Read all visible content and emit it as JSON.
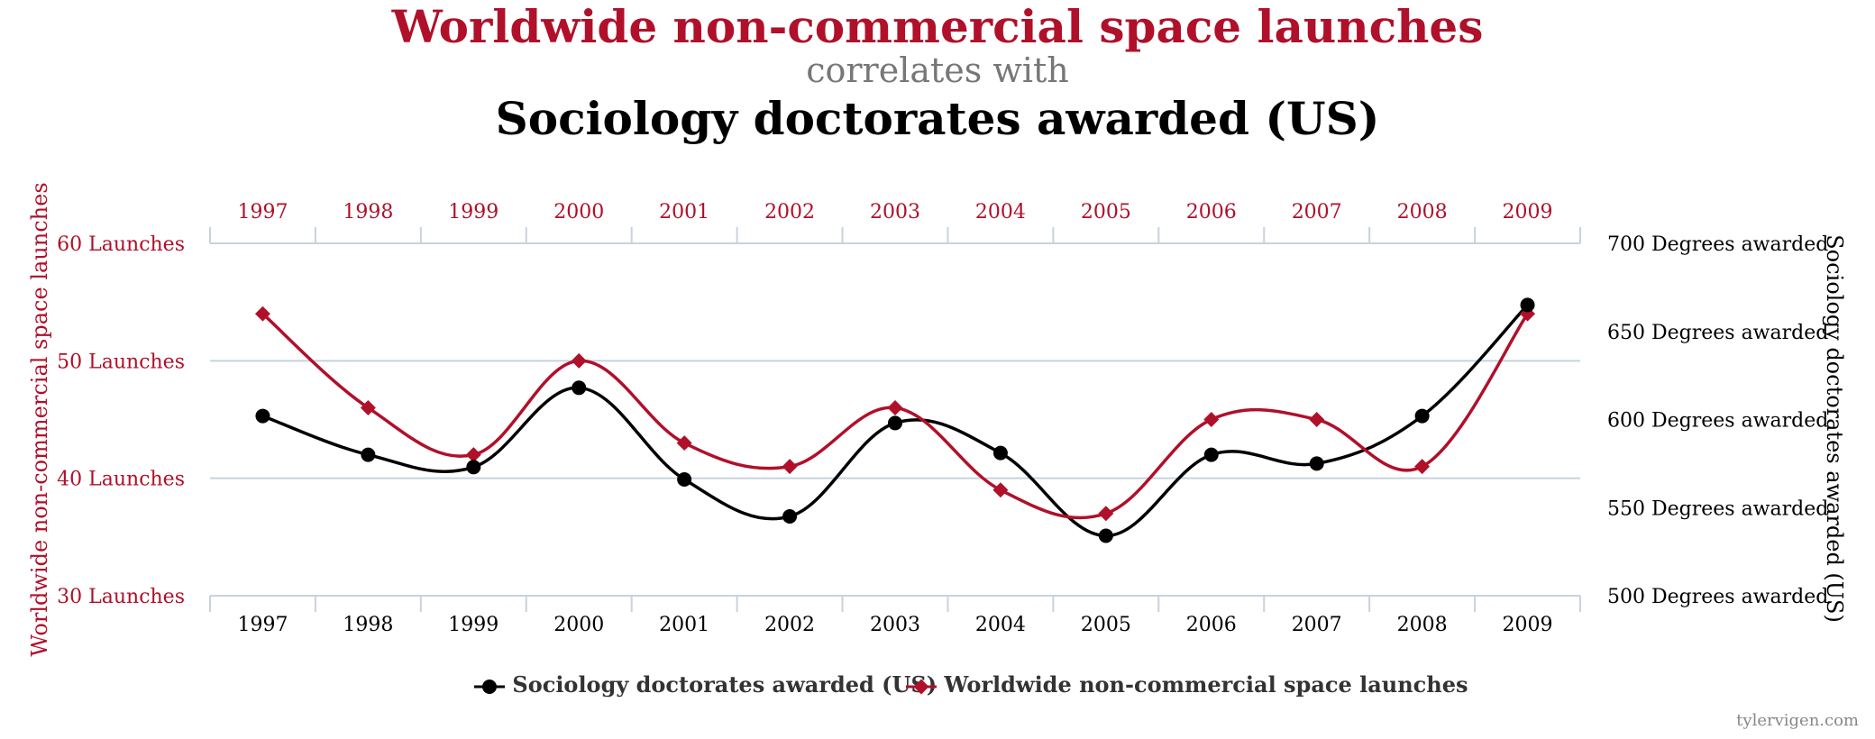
{
  "title": "Worldwide non-commercial space launches",
  "connector": "correlates with",
  "subtitle": "Sociology doctorates awarded (US)",
  "watermark": "tylervigen.com",
  "colors": {
    "series_red": "#b0102a",
    "series_black": "#000000",
    "grid": "#c8d2de",
    "subtitle_gray": "#777777"
  },
  "chart_data": {
    "type": "line",
    "categories": [
      "1997",
      "1998",
      "1999",
      "2000",
      "2001",
      "2002",
      "2003",
      "2004",
      "2005",
      "2006",
      "2007",
      "2008",
      "2009"
    ],
    "series": [
      {
        "name": "Sociology doctorates awarded (US)",
        "axis": "right",
        "color": "#000000",
        "marker": "circle",
        "values": [
          602,
          580,
          573,
          618,
          566,
          545,
          598,
          581,
          534,
          580,
          575,
          602,
          665
        ]
      },
      {
        "name": "Worldwide non-commercial space launches",
        "axis": "left",
        "color": "#b0102a",
        "marker": "diamond",
        "values": [
          54,
          46,
          42,
          50,
          43,
          41,
          46,
          39,
          37,
          45,
          45,
          41,
          54
        ]
      }
    ],
    "left_axis": {
      "label": "Worldwide non-commercial space launches",
      "range": [
        30,
        60
      ],
      "ticks": [
        {
          "value": 60,
          "label": "60 Launches"
        },
        {
          "value": 50,
          "label": "50 Launches"
        },
        {
          "value": 40,
          "label": "40 Launches"
        },
        {
          "value": 30,
          "label": "30 Launches"
        }
      ]
    },
    "right_axis": {
      "label": "Sociology doctorates awarded (US)",
      "range": [
        500,
        700
      ],
      "ticks": [
        {
          "value": 700,
          "label": "700 Degrees awarded"
        },
        {
          "value": 650,
          "label": "650 Degrees awarded"
        },
        {
          "value": 600,
          "label": "600 Degrees awarded"
        },
        {
          "value": 550,
          "label": "550 Degrees awarded"
        },
        {
          "value": 500,
          "label": "500 Degrees awarded"
        }
      ]
    },
    "legend": [
      "Sociology doctorates awarded (US)",
      "Worldwide non-commercial space launches"
    ],
    "legend_position": "bottom-center",
    "grid": true
  }
}
